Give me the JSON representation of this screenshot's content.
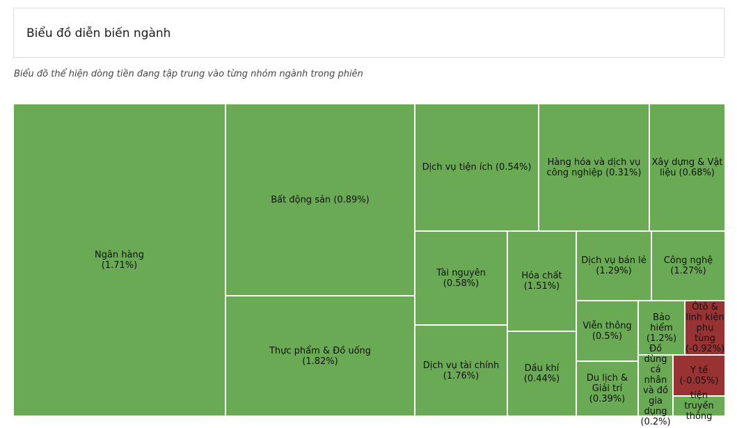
{
  "header": {
    "title": "Biểu đồ diễn biến ngành",
    "subtitle": "Biểu đồ thể hiện dòng tiền đang tập trung vào từng nhóm ngành trong phiên"
  },
  "colors": {
    "up": "#6aaa55",
    "down": "#993333"
  },
  "chart_data": {
    "type": "treemap",
    "items": [
      {
        "label": "Ngân hàng (1.71%)",
        "sector": "Ngân hàng",
        "change": 1.71
      },
      {
        "label": "Bất động sản (0.89%)",
        "sector": "Bất động sản",
        "change": 0.89
      },
      {
        "label": "Thực phẩm & Đồ uống (1.82%)",
        "sector": "Thực phẩm & Đồ uống",
        "change": 1.82
      },
      {
        "label": "Dịch vụ tiện ích (0.54%)",
        "sector": "Dịch vụ tiện ích",
        "change": 0.54
      },
      {
        "label": "Hàng hóa và dịch vụ công nghiệp (0.31%)",
        "sector": "Hàng hóa và dịch vụ công nghiệp",
        "change": 0.31
      },
      {
        "label": "Xây dựng & Vật liệu (0.68%)",
        "sector": "Xây dựng & Vật liệu",
        "change": 0.68
      },
      {
        "label": "Tài nguyên (0.58%)",
        "sector": "Tài nguyên",
        "change": 0.58
      },
      {
        "label": "Hóa chất (1.51%)",
        "sector": "Hóa chất",
        "change": 1.51
      },
      {
        "label": "Dịch vụ bán lẻ (1.29%)",
        "sector": "Dịch vụ bán lẻ",
        "change": 1.29
      },
      {
        "label": "Công nghệ (1.27%)",
        "sector": "Công nghệ",
        "change": 1.27
      },
      {
        "label": "Viễn thông (0.5%)",
        "sector": "Viễn thông",
        "change": 0.5
      },
      {
        "label": "Bảo hiểm (1.2%)",
        "sector": "Bảo hiểm",
        "change": 1.2
      },
      {
        "label": "Ôtô & linh kiện phụ tùng (-0.92%)",
        "sector": "Ôtô & linh kiện phụ tùng",
        "change": -0.92
      },
      {
        "label": "Dịch vụ tài chính (1.76%)",
        "sector": "Dịch vụ tài chính",
        "change": 1.76
      },
      {
        "label": "Dầu khí (0.44%)",
        "sector": "Dầu khí",
        "change": 0.44
      },
      {
        "label": "Du lịch & Giải trí (0.39%)",
        "sector": "Du lịch & Giải trí",
        "change": 0.39
      },
      {
        "label": "Đồ dùng cá nhân và đồ gia dụng (0.2%)",
        "sector": "Đồ dùng cá nhân và đồ gia dụng",
        "change": 0.2
      },
      {
        "label": "Y tế (-0.05%)",
        "sector": "Y tế",
        "change": -0.05
      },
      {
        "label": "tiện truyền thông",
        "sector": "Truyền thông",
        "change": null
      }
    ]
  }
}
